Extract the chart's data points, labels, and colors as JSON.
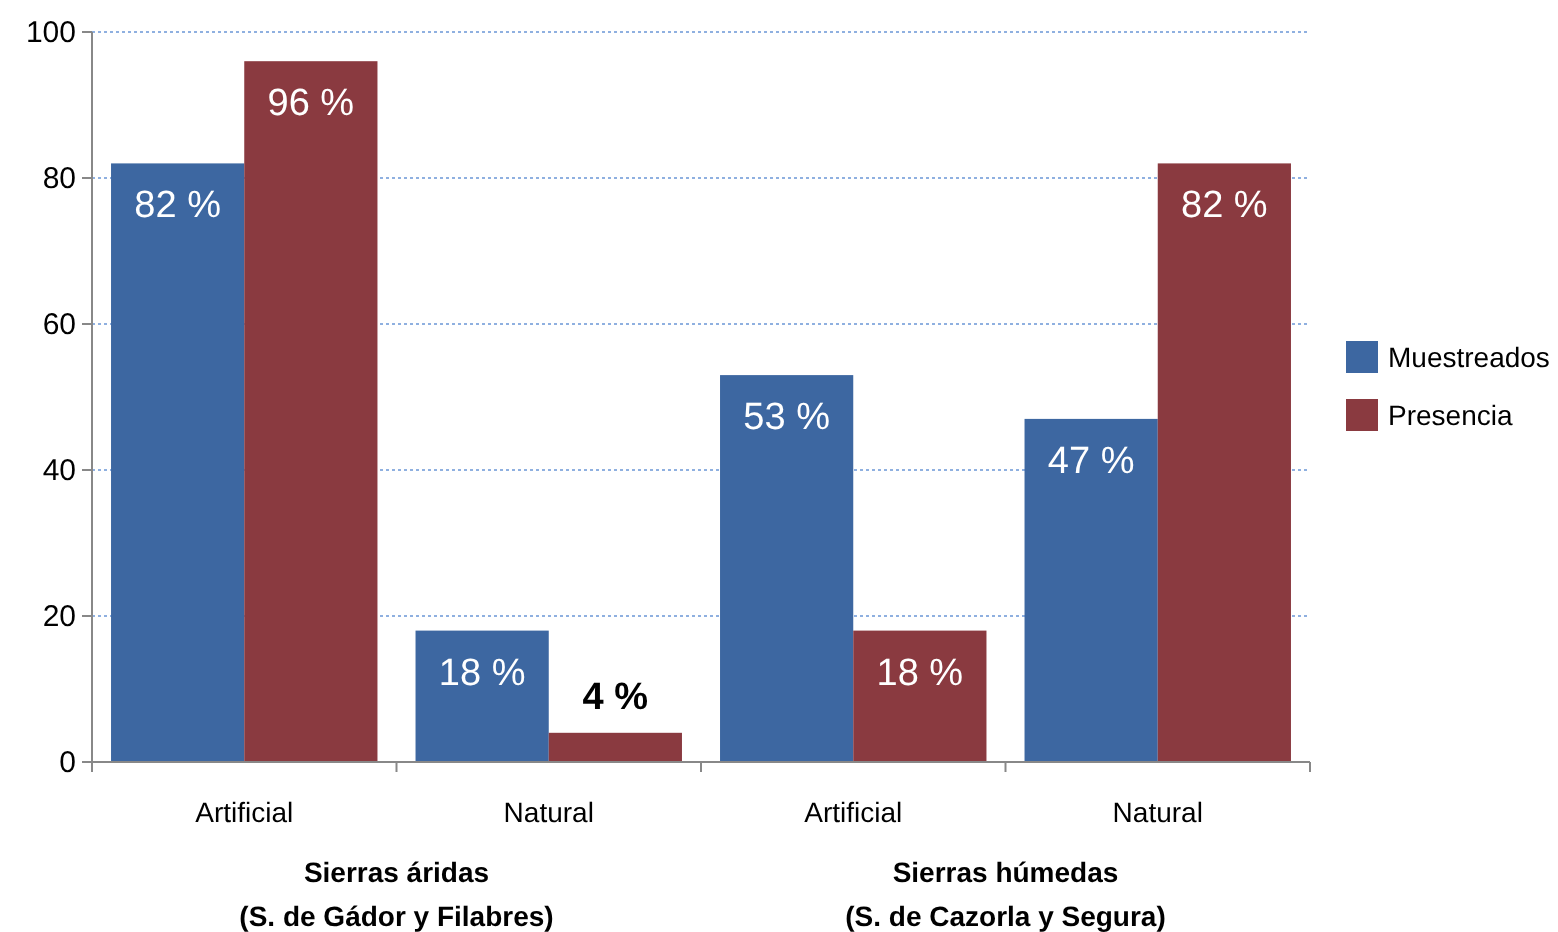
{
  "chart_data": {
    "type": "bar",
    "categories": [
      "Artificial",
      "Natural",
      "Artificial",
      "Natural"
    ],
    "series": [
      {
        "name": "Muestreados",
        "color": "#3d67a1",
        "values": [
          82,
          18,
          53,
          47
        ],
        "value_labels": [
          "82 %",
          "18 %",
          "53 %",
          "47 %"
        ]
      },
      {
        "name": "Presencia",
        "color": "#8a3a40",
        "values": [
          96,
          4,
          18,
          82
        ],
        "value_labels": [
          "96 %",
          "4 %",
          "18 %",
          "82 %"
        ]
      }
    ],
    "ylim": [
      0,
      100
    ],
    "yticks": [
      0,
      20,
      40,
      60,
      80,
      100
    ],
    "grid": "y",
    "legend": "right",
    "annotations": [
      "Sierras áridas\n(S. de Gádor y Filabres)",
      "Sierras húmedas\n(S. de Cazorla y Segura)"
    ]
  }
}
